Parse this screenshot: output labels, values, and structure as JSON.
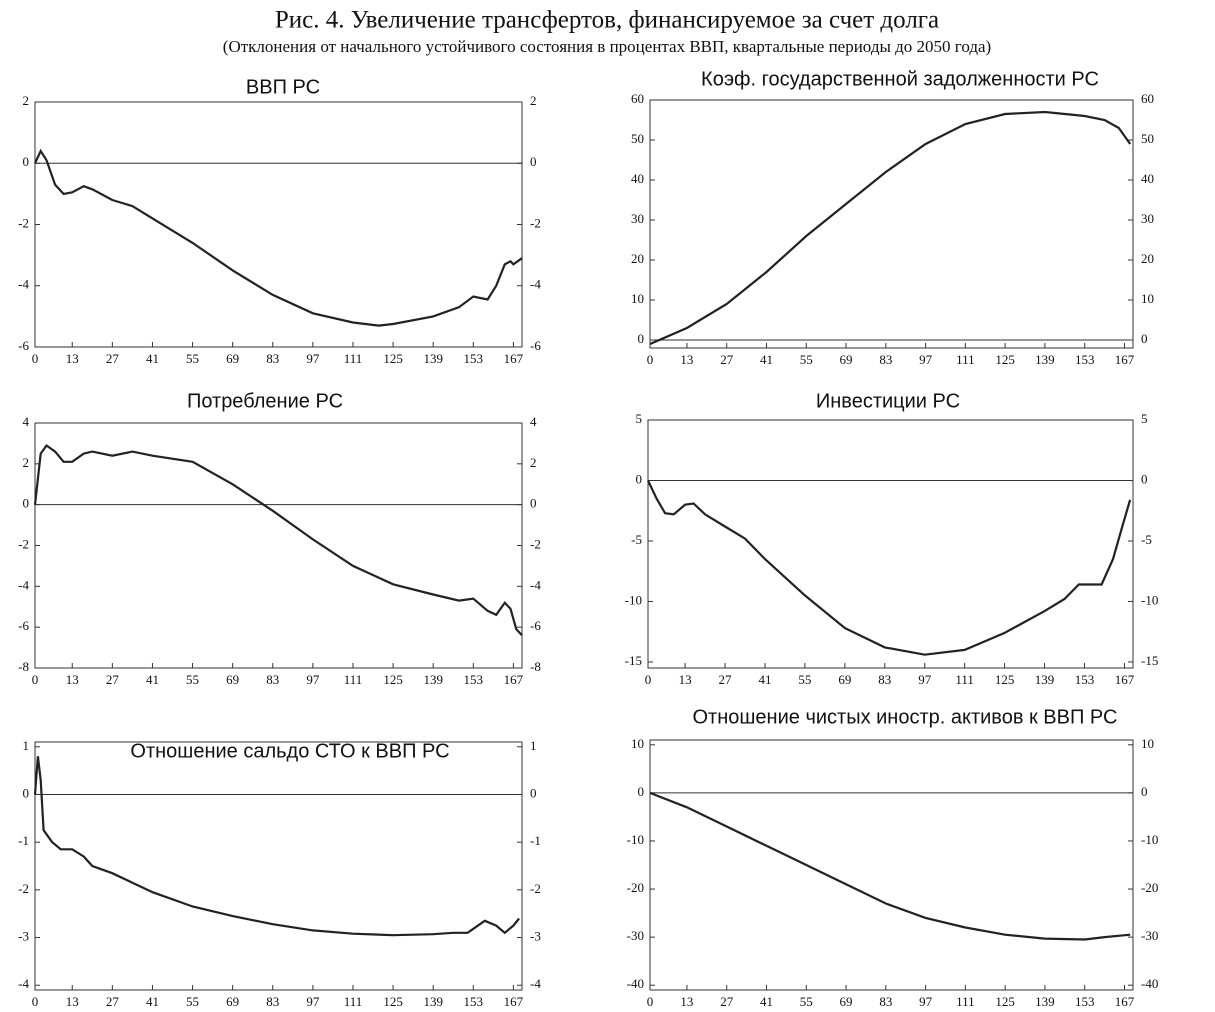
{
  "title": "Рис. 4. Увеличение трансфертов, финансируемое за счет долга",
  "subtitle": "(Отклонения от начального устойчивого состояния в процентах ВВП, квартальные периоды до 2050 года)",
  "chart_data": [
    {
      "type": "line",
      "title": "ВВП РС",
      "color": "#222222",
      "x": [
        0,
        2,
        4,
        7,
        10,
        13,
        17,
        20,
        27,
        34,
        41,
        55,
        69,
        83,
        97,
        111,
        120,
        125,
        139,
        148,
        153,
        158,
        161,
        164,
        166,
        167,
        170
      ],
      "values": [
        0,
        0.4,
        0.1,
        -0.7,
        -1,
        -0.95,
        -0.75,
        -0.85,
        -1.2,
        -1.4,
        -1.8,
        -2.6,
        -3.5,
        -4.3,
        -4.9,
        -5.2,
        -5.3,
        -5.25,
        -5.0,
        -4.7,
        -4.35,
        -4.45,
        -4.0,
        -3.3,
        -3.2,
        -3.3,
        -3.1
      ],
      "xlim": [
        0,
        170
      ],
      "xticks": [
        0,
        13,
        27,
        41,
        55,
        69,
        83,
        97,
        111,
        125,
        139,
        153,
        167
      ],
      "ylim": [
        -6,
        2
      ],
      "yticks": [
        2,
        0,
        -2,
        -4,
        -6
      ]
    },
    {
      "type": "line",
      "title": "Коэф. государственной задолженности РС",
      "color": "#222222",
      "x": [
        0,
        13,
        27,
        41,
        55,
        69,
        83,
        97,
        111,
        125,
        139,
        153,
        160,
        165,
        169
      ],
      "values": [
        -1,
        3,
        9,
        17,
        26,
        34,
        42,
        49,
        54,
        56.5,
        57,
        56,
        55,
        53,
        49
      ],
      "xlim": [
        0,
        170
      ],
      "xticks": [
        0,
        13,
        27,
        41,
        55,
        69,
        83,
        97,
        111,
        125,
        139,
        153,
        167
      ],
      "ylim": [
        -2,
        60
      ],
      "yticks": [
        0,
        10,
        20,
        30,
        40,
        50,
        60
      ]
    },
    {
      "type": "line",
      "title": "Потребление РС",
      "color": "#222222",
      "x": [
        0,
        2,
        4,
        7,
        10,
        13,
        17,
        20,
        27,
        34,
        41,
        55,
        69,
        83,
        97,
        111,
        125,
        139,
        148,
        153,
        158,
        161,
        164,
        166,
        168,
        170
      ],
      "values": [
        0,
        2.5,
        2.9,
        2.6,
        2.1,
        2.1,
        2.5,
        2.6,
        2.4,
        2.6,
        2.4,
        2.1,
        1.0,
        -0.3,
        -1.7,
        -3.0,
        -3.9,
        -4.4,
        -4.7,
        -4.6,
        -5.2,
        -5.4,
        -4.8,
        -5.1,
        -6.1,
        -6.4
      ],
      "xlim": [
        0,
        170
      ],
      "xticks": [
        0,
        13,
        27,
        41,
        55,
        69,
        83,
        97,
        111,
        125,
        139,
        153,
        167
      ],
      "ylim": [
        -8,
        4
      ],
      "yticks": [
        4,
        2,
        0,
        -2,
        -4,
        -6,
        -8
      ]
    },
    {
      "type": "line",
      "title": "Инвестиции РС",
      "color": "#222222",
      "x": [
        0,
        3,
        6,
        9,
        13,
        16,
        20,
        27,
        34,
        41,
        55,
        69,
        83,
        97,
        111,
        125,
        139,
        146,
        151,
        155,
        159,
        163,
        166,
        169
      ],
      "values": [
        0,
        -1.5,
        -2.7,
        -2.8,
        -2.0,
        -1.9,
        -2.8,
        -3.8,
        -4.8,
        -6.5,
        -9.5,
        -12.2,
        -13.8,
        -14.4,
        -14.0,
        -12.6,
        -10.8,
        -9.8,
        -8.6,
        -8.6,
        -8.6,
        -6.5,
        -4.0,
        -1.6
      ],
      "xlim": [
        0,
        170
      ],
      "xticks": [
        0,
        13,
        27,
        41,
        55,
        69,
        83,
        97,
        111,
        125,
        139,
        153,
        167
      ],
      "ylim": [
        -15.5,
        5
      ],
      "yticks": [
        5,
        0,
        -5,
        -10,
        -15
      ]
    },
    {
      "type": "line",
      "title": "Отношение сальдо СТО к ВВП РС",
      "color": "#222222",
      "x": [
        0,
        1,
        2,
        3,
        6,
        9,
        13,
        17,
        20,
        27,
        34,
        41,
        55,
        69,
        83,
        97,
        111,
        125,
        139,
        146,
        151,
        157,
        161,
        164,
        167,
        169
      ],
      "values": [
        0,
        0.8,
        0.3,
        -0.75,
        -1.0,
        -1.15,
        -1.15,
        -1.3,
        -1.5,
        -1.65,
        -1.85,
        -2.05,
        -2.35,
        -2.55,
        -2.72,
        -2.85,
        -2.92,
        -2.95,
        -2.93,
        -2.9,
        -2.9,
        -2.65,
        -2.75,
        -2.9,
        -2.75,
        -2.6
      ],
      "xlim": [
        0,
        170
      ],
      "xticks": [
        0,
        13,
        27,
        41,
        55,
        69,
        83,
        97,
        111,
        125,
        139,
        153,
        167
      ],
      "ylim": [
        -4.1,
        1.1
      ],
      "yticks": [
        1,
        0,
        -1,
        -2,
        -3,
        -4
      ]
    },
    {
      "type": "line",
      "title": "Отношение чистых иностр. активов к ВВП РС",
      "color": "#222222",
      "x": [
        0,
        13,
        27,
        41,
        55,
        69,
        83,
        97,
        111,
        125,
        139,
        153,
        160,
        169
      ],
      "values": [
        0,
        -3,
        -7,
        -11,
        -15,
        -19,
        -23,
        -26,
        -28,
        -29.5,
        -30.3,
        -30.5,
        -30.0,
        -29.5
      ],
      "xlim": [
        0,
        170
      ],
      "xticks": [
        0,
        13,
        27,
        41,
        55,
        69,
        83,
        97,
        111,
        125,
        139,
        153,
        167
      ],
      "ylim": [
        -41,
        11
      ],
      "yticks": [
        10,
        0,
        -10,
        -20,
        -30,
        -40
      ]
    }
  ]
}
